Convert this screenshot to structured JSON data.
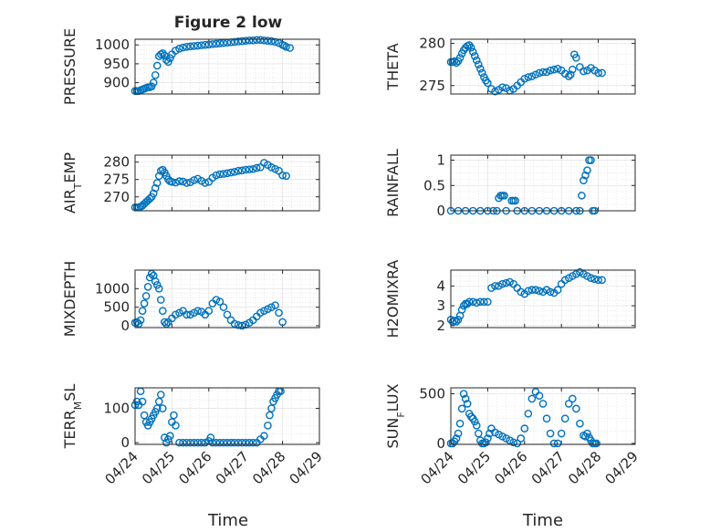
{
  "figure": {
    "title": "Figure 2 low",
    "xlabel": "Time"
  },
  "colors": {
    "marker": "#0072BD",
    "axis": "#262626",
    "grid": "#dcdcdc",
    "background": "#ffffff"
  },
  "chart_data": [
    {
      "type": "scatter",
      "ylabel": "PRESSURE",
      "ylim": [
        870,
        1015
      ],
      "yticks": [
        900,
        950,
        1000
      ],
      "xlim": [
        "04/24",
        "04/29"
      ],
      "xticks": [
        "04/24",
        "04/25",
        "04/26",
        "04/27",
        "04/28",
        "04/29"
      ],
      "show_xticklabels": false,
      "grid": true,
      "x": [
        0,
        0.05,
        0.1,
        0.15,
        0.2,
        0.25,
        0.3,
        0.35,
        0.4,
        0.45,
        0.5,
        0.55,
        0.6,
        0.65,
        0.7,
        0.75,
        0.8,
        0.85,
        0.9,
        0.95,
        1.0,
        1.1,
        1.2,
        1.3,
        1.4,
        1.5,
        1.6,
        1.7,
        1.8,
        1.9,
        2.0,
        2.1,
        2.2,
        2.3,
        2.4,
        2.5,
        2.6,
        2.7,
        2.8,
        2.9,
        3.0,
        3.1,
        3.2,
        3.3,
        3.4,
        3.5,
        3.6,
        3.7,
        3.8,
        3.9,
        4.0,
        4.05,
        4.1,
        4.2
      ],
      "y": [
        878,
        878,
        878,
        880,
        882,
        884,
        886,
        888,
        888,
        890,
        900,
        920,
        945,
        970,
        975,
        978,
        972,
        960,
        955,
        965,
        975,
        985,
        990,
        993,
        995,
        996,
        997,
        998,
        999,
        1000,
        1001,
        1002,
        1003,
        1004,
        1005,
        1006,
        1007,
        1008,
        1009,
        1010,
        1011,
        1012,
        1012,
        1013,
        1013,
        1012,
        1011,
        1010,
        1008,
        1005,
        1000,
        998,
        995,
        992
      ]
    },
    {
      "type": "scatter",
      "ylabel": "THETA",
      "ylim": [
        274,
        280.5
      ],
      "yticks": [
        275,
        280
      ],
      "xlim": [
        "04/24",
        "04/29"
      ],
      "xticks": [
        "04/24",
        "04/25",
        "04/26",
        "04/27",
        "04/28",
        "04/29"
      ],
      "show_xticklabels": false,
      "grid": true,
      "x": [
        0,
        0.05,
        0.1,
        0.15,
        0.2,
        0.25,
        0.3,
        0.35,
        0.4,
        0.45,
        0.5,
        0.55,
        0.6,
        0.65,
        0.7,
        0.75,
        0.8,
        0.85,
        0.9,
        0.95,
        1.0,
        1.1,
        1.2,
        1.3,
        1.4,
        1.5,
        1.6,
        1.7,
        1.8,
        1.9,
        2.0,
        2.1,
        2.2,
        2.3,
        2.4,
        2.5,
        2.6,
        2.7,
        2.8,
        2.9,
        3.0,
        3.1,
        3.2,
        3.25,
        3.3,
        3.35,
        3.4,
        3.5,
        3.6,
        3.7,
        3.8,
        3.9,
        4.0,
        4.1
      ],
      "y": [
        277.8,
        277.8,
        277.9,
        277.7,
        277.9,
        278.3,
        278.8,
        279.2,
        279.5,
        279.7,
        279.8,
        279.5,
        279.0,
        278.5,
        278.0,
        277.5,
        277.0,
        276.5,
        276.0,
        275.6,
        275.3,
        274.6,
        274.3,
        274.5,
        274.8,
        274.7,
        274.4,
        274.6,
        275.0,
        275.4,
        275.8,
        276.0,
        276.1,
        276.3,
        276.5,
        276.6,
        276.6,
        276.8,
        276.9,
        277.0,
        276.8,
        276.4,
        276.1,
        276.3,
        276.9,
        278.7,
        278.3,
        277.2,
        276.7,
        276.8,
        277.1,
        276.8,
        276.5,
        276.5
      ]
    },
    {
      "type": "scatter",
      "ylabel": "AIR_TEMP",
      "ylim": [
        266,
        282
      ],
      "yticks": [
        270,
        275,
        280
      ],
      "xlim": [
        "04/24",
        "04/29"
      ],
      "xticks": [
        "04/24",
        "04/25",
        "04/26",
        "04/27",
        "04/28",
        "04/29"
      ],
      "show_xticklabels": false,
      "grid": true,
      "x": [
        0,
        0.05,
        0.1,
        0.15,
        0.2,
        0.25,
        0.3,
        0.35,
        0.4,
        0.45,
        0.5,
        0.55,
        0.6,
        0.65,
        0.7,
        0.75,
        0.8,
        0.85,
        0.9,
        0.95,
        1.0,
        1.1,
        1.2,
        1.3,
        1.4,
        1.5,
        1.6,
        1.7,
        1.8,
        1.9,
        2.0,
        2.1,
        2.2,
        2.3,
        2.4,
        2.5,
        2.6,
        2.7,
        2.8,
        2.9,
        3.0,
        3.1,
        3.2,
        3.3,
        3.4,
        3.5,
        3.6,
        3.7,
        3.8,
        3.9,
        4.0,
        4.1
      ],
      "y": [
        267,
        267,
        267,
        267.2,
        267.5,
        268,
        268.5,
        269,
        269.5,
        270,
        271,
        272.5,
        274,
        276,
        277.5,
        277.8,
        277,
        276,
        275,
        274.5,
        274.3,
        274.1,
        274.5,
        274.4,
        274.0,
        274.2,
        274.8,
        275.2,
        274.6,
        274.0,
        274.3,
        275.5,
        276.2,
        276.5,
        276.6,
        276.8,
        277.0,
        277.2,
        277.5,
        277.6,
        277.8,
        277.9,
        278.0,
        278.3,
        278.5,
        279.8,
        279.2,
        278.5,
        278.0,
        277.5,
        276.2,
        276.0
      ]
    },
    {
      "type": "scatter",
      "ylabel": "RAINFALL",
      "ylim": [
        0,
        1.1
      ],
      "yticks": [
        0,
        0.5,
        1
      ],
      "xlim": [
        "04/24",
        "04/29"
      ],
      "xticks": [
        "04/24",
        "04/25",
        "04/26",
        "04/27",
        "04/28",
        "04/29"
      ],
      "show_xticklabels": false,
      "grid": true,
      "x": [
        0,
        0.2,
        0.4,
        0.6,
        0.8,
        1.0,
        1.15,
        1.25,
        1.3,
        1.35,
        1.4,
        1.45,
        1.5,
        1.65,
        1.7,
        1.75,
        1.8,
        2.0,
        2.2,
        2.4,
        2.6,
        2.8,
        3.0,
        3.2,
        3.4,
        3.5,
        3.55,
        3.6,
        3.65,
        3.7,
        3.75,
        3.8,
        3.85,
        3.9
      ],
      "y": [
        0,
        0,
        0,
        0,
        0,
        0,
        0,
        0,
        0.25,
        0.3,
        0.3,
        0.3,
        0,
        0.2,
        0.2,
        0.2,
        0,
        0,
        0,
        0,
        0,
        0,
        0,
        0,
        0,
        0,
        0.3,
        0.6,
        0.7,
        0.8,
        1.0,
        1.0,
        0,
        0
      ]
    },
    {
      "type": "scatter",
      "ylabel": "MIXDEPTH",
      "ylim": [
        -50,
        1500
      ],
      "yticks": [
        0,
        500,
        1000
      ],
      "xlim": [
        "04/24",
        "04/29"
      ],
      "xticks": [
        "04/24",
        "04/25",
        "04/26",
        "04/27",
        "04/28",
        "04/29"
      ],
      "show_xticklabels": false,
      "grid": true,
      "x": [
        0,
        0.05,
        0.1,
        0.15,
        0.2,
        0.25,
        0.3,
        0.35,
        0.4,
        0.45,
        0.5,
        0.55,
        0.6,
        0.65,
        0.7,
        0.75,
        0.8,
        0.85,
        0.9,
        1.0,
        1.1,
        1.2,
        1.3,
        1.4,
        1.5,
        1.6,
        1.7,
        1.8,
        1.9,
        2.0,
        2.1,
        2.2,
        2.3,
        2.4,
        2.5,
        2.6,
        2.7,
        2.8,
        2.9,
        3.0,
        3.1,
        3.2,
        3.3,
        3.4,
        3.5,
        3.6,
        3.7,
        3.8,
        3.9,
        4.0
      ],
      "y": [
        80,
        100,
        50,
        150,
        400,
        600,
        800,
        1050,
        1300,
        1400,
        1350,
        1200,
        1100,
        1000,
        700,
        400,
        100,
        50,
        100,
        200,
        300,
        350,
        400,
        300,
        300,
        350,
        400,
        380,
        300,
        400,
        600,
        700,
        650,
        500,
        300,
        150,
        50,
        20,
        0,
        30,
        80,
        150,
        250,
        350,
        400,
        450,
        500,
        550,
        350,
        100
      ]
    },
    {
      "type": "scatter",
      "ylabel": "H2OMIXRA",
      "ylim": [
        1.9,
        4.8
      ],
      "yticks": [
        2,
        3,
        4
      ],
      "xlim": [
        "04/24",
        "04/29"
      ],
      "xticks": [
        "04/24",
        "04/25",
        "04/26",
        "04/27",
        "04/28",
        "04/29"
      ],
      "show_xticklabels": false,
      "grid": true,
      "x": [
        0,
        0.05,
        0.1,
        0.15,
        0.2,
        0.25,
        0.3,
        0.35,
        0.4,
        0.45,
        0.5,
        0.6,
        0.7,
        0.8,
        0.9,
        1.0,
        1.1,
        1.2,
        1.3,
        1.4,
        1.5,
        1.6,
        1.7,
        1.8,
        1.9,
        2.0,
        2.1,
        2.2,
        2.3,
        2.4,
        2.5,
        2.6,
        2.7,
        2.8,
        2.9,
        3.0,
        3.1,
        3.2,
        3.3,
        3.4,
        3.5,
        3.6,
        3.7,
        3.8,
        3.9,
        4.0,
        4.1
      ],
      "y": [
        2.3,
        2.2,
        2.25,
        2.2,
        2.3,
        2.5,
        2.8,
        3.0,
        3.1,
        3.1,
        3.2,
        3.2,
        3.15,
        3.2,
        3.2,
        3.2,
        3.9,
        4.0,
        4.0,
        4.1,
        4.15,
        4.2,
        4.1,
        3.9,
        3.7,
        3.6,
        3.75,
        3.8,
        3.8,
        3.75,
        3.7,
        3.8,
        3.7,
        3.65,
        3.8,
        4.1,
        4.3,
        4.4,
        4.5,
        4.6,
        4.7,
        4.6,
        4.5,
        4.4,
        4.35,
        4.3,
        4.3
      ]
    },
    {
      "type": "scatter",
      "ylabel": "TERR_MSL",
      "ylim": [
        -5,
        160
      ],
      "yticks": [
        0,
        100
      ],
      "xlim": [
        "04/24",
        "04/29"
      ],
      "xticks": [
        "04/24",
        "04/25",
        "04/26",
        "04/27",
        "04/28",
        "04/29"
      ],
      "show_xticklabels": true,
      "grid": true,
      "x": [
        0,
        0.05,
        0.1,
        0.15,
        0.2,
        0.25,
        0.3,
        0.35,
        0.4,
        0.45,
        0.5,
        0.55,
        0.6,
        0.65,
        0.7,
        0.75,
        0.8,
        0.85,
        0.9,
        0.95,
        1.0,
        1.05,
        1.1,
        1.2,
        1.3,
        1.4,
        1.5,
        1.6,
        1.7,
        1.8,
        1.9,
        2.0,
        2.05,
        2.1,
        2.2,
        2.3,
        2.4,
        2.5,
        2.6,
        2.7,
        2.8,
        2.9,
        3.0,
        3.1,
        3.2,
        3.3,
        3.4,
        3.5,
        3.6,
        3.65,
        3.7,
        3.75,
        3.8,
        3.85,
        3.9,
        3.95
      ],
      "y": [
        110,
        120,
        110,
        150,
        120,
        80,
        60,
        50,
        60,
        70,
        80,
        90,
        100,
        120,
        140,
        100,
        15,
        0,
        10,
        20,
        60,
        80,
        50,
        0,
        0,
        0,
        0,
        0,
        0,
        0,
        0,
        5,
        15,
        0,
        0,
        0,
        0,
        0,
        0,
        0,
        0,
        0,
        0,
        0,
        0,
        0,
        10,
        20,
        50,
        80,
        100,
        120,
        130,
        140,
        150,
        150
      ]
    },
    {
      "type": "scatter",
      "ylabel": "SUN_FLUX",
      "ylim": [
        -10,
        560
      ],
      "yticks": [
        0,
        500
      ],
      "xlim": [
        "04/24",
        "04/29"
      ],
      "xticks": [
        "04/24",
        "04/25",
        "04/26",
        "04/27",
        "04/28",
        "04/29"
      ],
      "show_xticklabels": true,
      "grid": true,
      "x": [
        0,
        0.05,
        0.1,
        0.15,
        0.2,
        0.25,
        0.3,
        0.35,
        0.4,
        0.45,
        0.5,
        0.55,
        0.6,
        0.65,
        0.7,
        0.75,
        0.8,
        0.85,
        0.9,
        0.95,
        1.0,
        1.05,
        1.1,
        1.2,
        1.3,
        1.4,
        1.5,
        1.6,
        1.7,
        1.8,
        1.9,
        2.0,
        2.1,
        2.2,
        2.3,
        2.4,
        2.5,
        2.6,
        2.7,
        2.8,
        2.9,
        3.0,
        3.1,
        3.2,
        3.3,
        3.4,
        3.5,
        3.6,
        3.65,
        3.7,
        3.75,
        3.8,
        3.85,
        3.9,
        3.95
      ],
      "y": [
        0,
        0,
        20,
        50,
        100,
        200,
        350,
        500,
        450,
        400,
        300,
        270,
        250,
        220,
        180,
        100,
        30,
        0,
        0,
        10,
        50,
        100,
        150,
        110,
        90,
        70,
        50,
        30,
        10,
        0,
        50,
        150,
        300,
        450,
        520,
        480,
        400,
        250,
        100,
        0,
        0,
        100,
        250,
        400,
        450,
        350,
        200,
        80,
        70,
        100,
        60,
        30,
        0,
        0,
        0
      ]
    }
  ]
}
